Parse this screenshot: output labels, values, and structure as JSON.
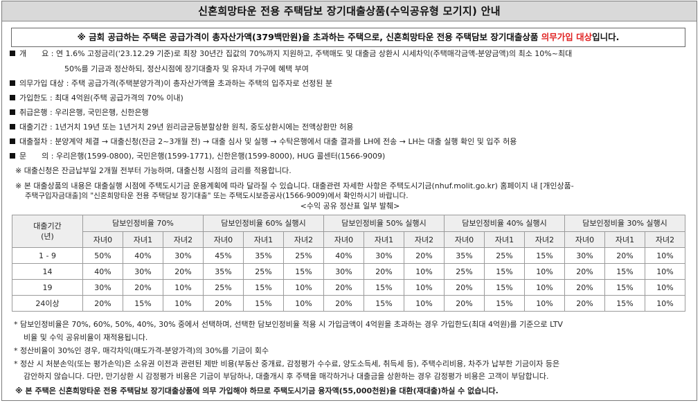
{
  "title": "신혼희망타운 전용 주택담보 장기대출상품(수익공유형 모기지) 안내",
  "notice": {
    "prefix": "※ 금회 공급하는 주택은 공급가격이 총자산가액(379백만원)을 초과하는 주택으로, 신혼희망타운 전용 주택담보 장기대출상품 ",
    "highlight": "의무가입 대상",
    "suffix": "입니다."
  },
  "items": [
    {
      "label": "개　　요",
      "text": "연 1.6% 고정금리('23.12.29 기준)로 최장 30년간 집값의 70%까지 지원하고, 주택매도 및 대출금 상환시 시세차익(주택매각금액-분양금액)의 최소 10%~최대",
      "cont": "50%를 기금과 정산하되, 정산시점에 장기대출자 및 유자녀 가구에 혜택 부여"
    },
    {
      "label": "의무가입 대상",
      "text": "주택 공급가격(주택분양가격)이 총자산가액을 초과하는 주택의 입주자로 선정된 분"
    },
    {
      "label": "가입한도",
      "text": "최대 4억원(주택 공급가격의 70% 이내)"
    },
    {
      "label": "취급은행",
      "text": "우리은행, 국민은행, 신한은행"
    },
    {
      "label": "대출기간",
      "text": "1년거치 19년 또는 1년거치 29년 원리금균등분할상환 원칙, 중도상환시에는 전액상환만 허용"
    },
    {
      "label": "대출절차",
      "text": "분양계약 체결 → 대출신청(잔금 2~3개월 전) → 대출 심사 및 실행 → 수탁은행에서 대출 결과를 LH에 전송 → LH는 대출 실행 확인 및 입주 허용"
    },
    {
      "label": "문　　의",
      "text": "우리은행(1599-0800), 국민은행(1599-1771), 신한은행(1599-8000), HUG 콜센터(1566-9009)"
    }
  ],
  "remarks": [
    "※ 대출신청은 잔금납부일 2개월 전부터 가능하며, 대출신청 시점의 금리를 적용합니다.",
    "※ 본 대출상품의 내용은 대출실행 시점에 주택도시기금 운용계획에 따라 달라질 수 있습니다. 대출관련 자세한 사항은 주택도시기금(nhuf.molit.go.kr) 홈페이지 내 [개인상품-",
    "주택구입자금대출]의 \"신혼희망타운 전용 주택담보 장기대출\" 또는 주택도시보증공사(1566-9009)에서 확인하시기 바랍니다."
  ],
  "table": {
    "caption": "<수익 공유 정산표 일부 발췌>",
    "row_header_label": "대출기간\n(년)",
    "groups": [
      "담보인정비율 70%",
      "담보인정비율 60% 실행시",
      "담보인정비율  50% 실행시",
      "담보인정비율 40% 실행시",
      "담보인정비율 30% 실행시"
    ],
    "subheads": [
      "자녀0",
      "자녀1",
      "자녀2"
    ],
    "rows": [
      {
        "period": "1 - 9",
        "values": [
          "50%",
          "40%",
          "30%",
          "45%",
          "35%",
          "25%",
          "40%",
          "30%",
          "20%",
          "35%",
          "25%",
          "15%",
          "30%",
          "20%",
          "10%"
        ]
      },
      {
        "period": "14",
        "values": [
          "40%",
          "30%",
          "20%",
          "35%",
          "25%",
          "15%",
          "30%",
          "20%",
          "10%",
          "25%",
          "15%",
          "10%",
          "20%",
          "15%",
          "10%"
        ]
      },
      {
        "period": "19",
        "values": [
          "30%",
          "20%",
          "10%",
          "25%",
          "15%",
          "10%",
          "20%",
          "15%",
          "10%",
          "20%",
          "15%",
          "10%",
          "20%",
          "15%",
          "10%"
        ]
      },
      {
        "period": "24이상",
        "values": [
          "20%",
          "15%",
          "10%",
          "20%",
          "15%",
          "10%",
          "20%",
          "15%",
          "10%",
          "20%",
          "15%",
          "10%",
          "20%",
          "15%",
          "10%"
        ]
      }
    ]
  },
  "footnotes": [
    "* 담보인정비율은 70%, 60%, 50%, 40%, 30% 중에서 선택하며, 선택한 담보인정비율 적용 시 가입금액이 4억원을 초과하는 경우 가입한도(최대 4억원)를 기준으로 LTV",
    "비율 및 수익 공유비율이 재적용됩니다.",
    "* 정산비율이 30%인 경우, 매각차익(매도가격-분양가격)의 30%를 기금이 회수",
    "* 정산 시 처분손익(또는 평가손익)은 소유권 이전과 관련된 제반 비용(부동산 중개료, 감정평가 수수료, 양도소득세, 취득세 등), 주택수리비용, 차주가 납부한 기금이자 등은",
    "감안하지 않습니다. 다만, 만기상환 시 감정평가 비용은 기금이 부담하나, 대출개시 후 주택을 매각하거나 대출금을 상환하는 경우 감정평가 비용은 고객이 부담합니다.",
    "※ 본 주택은 신혼희망타운 전용 주택담보 장기대출상품에 의무 가입해야 하므로 주택도시기금 융자액(55,000천원)을 대환(재대출)하실 수 없습니다."
  ]
}
